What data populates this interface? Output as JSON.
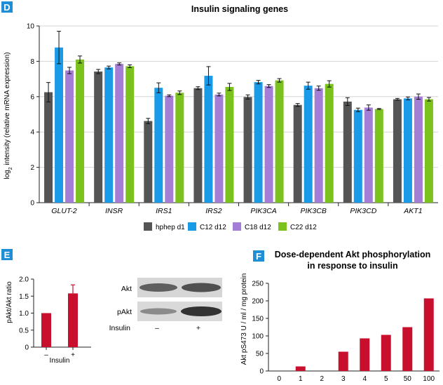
{
  "colors": {
    "panel_badge": "#1e8fd6",
    "hphep": "#555555",
    "c12": "#1a9be8",
    "c18": "#a47ed6",
    "c22": "#7cc21e",
    "akt": "#c8102e",
    "axis": "#222222"
  },
  "chart_data": [
    {
      "panel": "D",
      "type": "bar",
      "title": "Insulin signaling genes",
      "ylabel": "log₂ intensity (relative mRNA expression)",
      "ylim": [
        0,
        10
      ],
      "yticks": [
        0,
        2,
        4,
        6,
        8,
        10
      ],
      "categories": [
        "GLUT-2",
        "INSR",
        "IRS1",
        "IRS2",
        "PIK3CA",
        "PIK3CB",
        "PIK3CD",
        "AKT1"
      ],
      "series": [
        {
          "name": "hphep d1",
          "color_key": "hphep",
          "values": [
            6.25,
            7.42,
            4.62,
            6.48,
            5.98,
            5.53,
            5.72,
            5.85
          ],
          "errors": [
            0.55,
            0.12,
            0.15,
            0.08,
            0.12,
            0.08,
            0.22,
            0.05
          ]
        },
        {
          "name": "C12 d12",
          "color_key": "c12",
          "values": [
            8.78,
            7.65,
            6.5,
            7.18,
            6.82,
            6.62,
            5.25,
            5.9
          ],
          "errors": [
            0.92,
            0.08,
            0.28,
            0.52,
            0.1,
            0.2,
            0.1,
            0.08
          ]
        },
        {
          "name": "C18 d12",
          "color_key": "c18",
          "values": [
            7.48,
            7.85,
            6.05,
            6.12,
            6.6,
            6.48,
            5.38,
            6.0
          ],
          "errors": [
            0.18,
            0.06,
            0.05,
            0.08,
            0.08,
            0.12,
            0.15,
            0.15
          ]
        },
        {
          "name": "C22 d12",
          "color_key": "c22",
          "values": [
            8.1,
            7.72,
            6.22,
            6.55,
            6.92,
            6.72,
            5.3,
            5.85
          ],
          "errors": [
            0.2,
            0.08,
            0.1,
            0.2,
            0.1,
            0.18,
            0.03,
            0.1
          ]
        }
      ]
    },
    {
      "panel": "E",
      "type": "bar",
      "title": "",
      "ylabel": "pAkt/Akt ratio",
      "xlabel": "Insulin",
      "ylim": [
        0,
        2.0
      ],
      "yticks": [
        0,
        0.5,
        1.0,
        1.5,
        2.0
      ],
      "ytick_labels": [
        "0",
        "0.5",
        "1.0",
        "1.5",
        "2.0"
      ],
      "categories": [
        "–",
        "+"
      ],
      "values": [
        1.0,
        1.58
      ],
      "errors": [
        0,
        0.25
      ],
      "color_key": "akt"
    },
    {
      "panel": "F",
      "type": "bar",
      "title": "Dose-dependent Akt phosphorylation",
      "subtitle": "in response to insulin",
      "ylabel": "Akt pS473 U / ml / mg protein",
      "ylim": [
        0,
        250
      ],
      "yticks": [
        0,
        50,
        100,
        150,
        200,
        250
      ],
      "categories": [
        "0",
        "1",
        "2",
        "3",
        "4",
        "5",
        "50",
        "100"
      ],
      "values": [
        0,
        13,
        0,
        55,
        93,
        103,
        125,
        207
      ],
      "color_key": "akt"
    }
  ],
  "blot": {
    "rows": [
      "Akt",
      "pAkt"
    ],
    "insulin_label": "Insulin",
    "lanes": [
      "–",
      "+"
    ]
  }
}
